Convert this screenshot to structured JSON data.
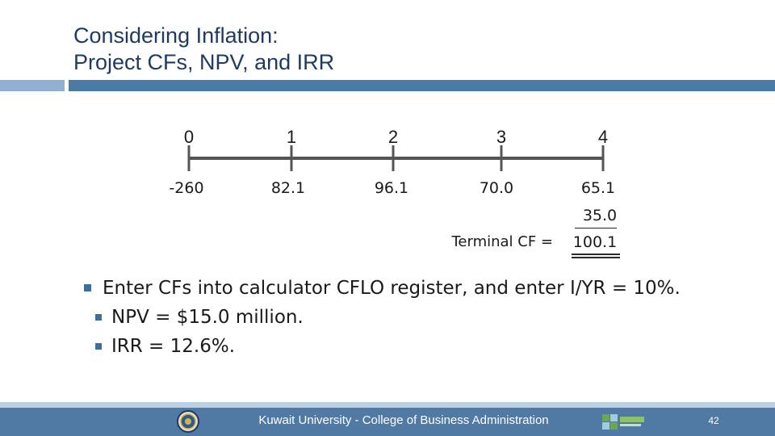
{
  "slide": {
    "title_line1": "Considering Inflation:",
    "title_line2": "Project CFs, NPV, and IRR"
  },
  "timeline": {
    "periods": [
      "0",
      "1",
      "2",
      "3",
      "4"
    ],
    "cash_flows": [
      "-260",
      "82.1",
      "96.1",
      "70.0",
      "65.1"
    ],
    "terminal_add": "35.0",
    "terminal_label": "Terminal CF =",
    "terminal_total": "100.1"
  },
  "bullets": {
    "main": "Enter CFs into calculator CFLO register, and enter I/YR = 10%.",
    "sub1": "NPV = $15.0 million.",
    "sub2": "IRR = 12.6%."
  },
  "footer": {
    "text": "Kuwait University - College of Business Administration",
    "page_number": "42"
  },
  "colors": {
    "title": "#1f3b63",
    "accent_bar": "#4a7aa6",
    "accent_bar_light": "#8fb0d3",
    "bullet": "#3f6e9a",
    "footer_bg": "#5079a3"
  }
}
